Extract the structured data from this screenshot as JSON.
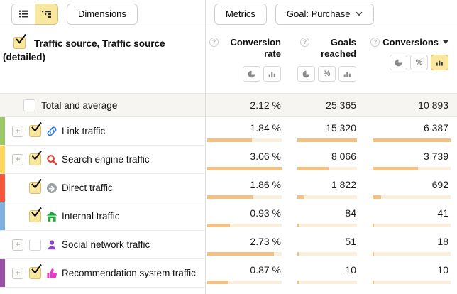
{
  "toolbar": {
    "dimensions_label": "Dimensions",
    "metrics_label": "Metrics",
    "goal_label": "Goal: Purchase",
    "expand_glyph": "+",
    "help_glyph": "?",
    "percent_glyph": "%"
  },
  "colors": {
    "accent_selected_yellow": "#fae79f",
    "bar_fill": "#f6c083",
    "bar_track": "#fbeedd",
    "checkbox_yellow": "#f8e69d"
  },
  "table": {
    "dimension_header": "Traffic source, Traffic source (detailed)",
    "columns": [
      {
        "label": "Conversion rate"
      },
      {
        "label": "Goals reached"
      },
      {
        "label": "Conversions",
        "sort": "desc"
      }
    ],
    "total_row": {
      "label": "Total and average",
      "checked": false,
      "values": [
        "2.12 %",
        "25 365",
        "10 893"
      ]
    },
    "rows": [
      {
        "label": "Link traffic",
        "icon": "link-icon",
        "stripe_color": "#9cc868",
        "expandable": true,
        "checked": true,
        "values": [
          "1.84 %",
          "15 320",
          "6 387"
        ],
        "bars": [
          0.601,
          1,
          1
        ]
      },
      {
        "label": "Search engine traffic",
        "icon": "search-icon",
        "stripe_color": "#fbd75f",
        "expandable": true,
        "checked": true,
        "values": [
          "3.06 %",
          "8 066",
          "3 739"
        ],
        "bars": [
          1,
          0.527,
          0.585
        ]
      },
      {
        "label": "Direct traffic",
        "icon": "direct-arrow-icon",
        "stripe_color": "#f4573c",
        "expandable": false,
        "checked": true,
        "values": [
          "1.86 %",
          "1 822",
          "692"
        ],
        "bars": [
          0.608,
          0.119,
          0.108
        ]
      },
      {
        "label": "Internal traffic",
        "icon": "home-icon",
        "stripe_color": "#7eb1df",
        "expandable": false,
        "checked": true,
        "values": [
          "0.93 %",
          "84",
          "41"
        ],
        "bars": [
          0.304,
          0.006,
          0.007
        ]
      },
      {
        "label": "Social network traffic",
        "icon": "person-icon",
        "stripe_color": "",
        "expandable": true,
        "checked": false,
        "values": [
          "2.73 %",
          "51",
          "18"
        ],
        "bars": [
          0.892,
          0.004,
          0.003
        ]
      },
      {
        "label": "Recommendation system traffic",
        "icon": "thumb-up-icon",
        "stripe_color": "#9b51a5",
        "expandable": true,
        "checked": true,
        "values": [
          "0.87 %",
          "10",
          "10"
        ],
        "bars": [
          0.284,
          0.002,
          0.002
        ]
      }
    ]
  }
}
